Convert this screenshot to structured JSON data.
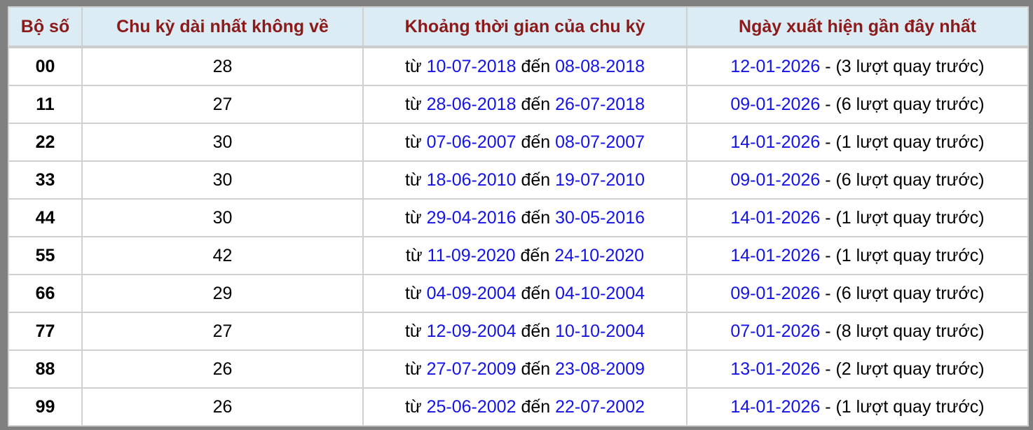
{
  "headers": [
    "Bộ số",
    "Chu kỳ dài nhất không về",
    "Khoảng thời gian của chu kỳ",
    "Ngày xuất hiện gần đây nhất"
  ],
  "from_word": "từ",
  "to_word": "đến",
  "rows": [
    {
      "number": "00",
      "cycle": "28",
      "from": "10-07-2018",
      "to": "08-08-2018",
      "last_date": "12-01-2026",
      "last_note": " - (3 lượt quay trước)"
    },
    {
      "number": "11",
      "cycle": "27",
      "from": "28-06-2018",
      "to": "26-07-2018",
      "last_date": "09-01-2026",
      "last_note": " - (6 lượt quay trước)"
    },
    {
      "number": "22",
      "cycle": "30",
      "from": "07-06-2007",
      "to": "08-07-2007",
      "last_date": "14-01-2026",
      "last_note": " - (1 lượt quay trước)"
    },
    {
      "number": "33",
      "cycle": "30",
      "from": "18-06-2010",
      "to": "19-07-2010",
      "last_date": "09-01-2026",
      "last_note": " - (6 lượt quay trước)"
    },
    {
      "number": "44",
      "cycle": "30",
      "from": "29-04-2016",
      "to": "30-05-2016",
      "last_date": "14-01-2026",
      "last_note": " - (1 lượt quay trước)"
    },
    {
      "number": "55",
      "cycle": "42",
      "from": "11-09-2020",
      "to": "24-10-2020",
      "last_date": "14-01-2026",
      "last_note": " - (1 lượt quay trước)"
    },
    {
      "number": "66",
      "cycle": "29",
      "from": "04-09-2004",
      "to": "04-10-2004",
      "last_date": "09-01-2026",
      "last_note": " - (6 lượt quay trước)"
    },
    {
      "number": "77",
      "cycle": "27",
      "from": "12-09-2004",
      "to": "10-10-2004",
      "last_date": "07-01-2026",
      "last_note": " - (8 lượt quay trước)"
    },
    {
      "number": "88",
      "cycle": "26",
      "from": "27-07-2009",
      "to": "23-08-2009",
      "last_date": "13-01-2026",
      "last_note": " - (2 lượt quay trước)"
    },
    {
      "number": "99",
      "cycle": "26",
      "from": "25-06-2002",
      "to": "22-07-2002",
      "last_date": "14-01-2026",
      "last_note": " - (1 lượt quay trước)"
    }
  ]
}
